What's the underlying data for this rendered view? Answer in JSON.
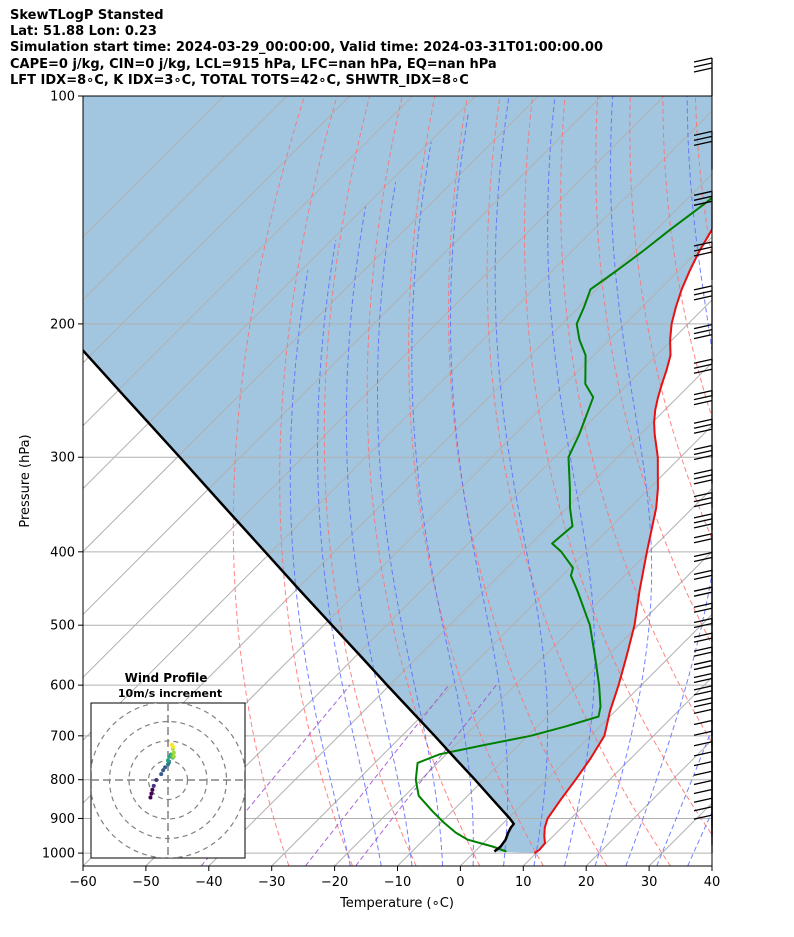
{
  "header": {
    "line1": "SkewTLogP Stansted",
    "line2": "Lat: 51.88   Lon: 0.23",
    "line3": "Simulation start time: 2024-03-29_00:00:00, Valid time: 2024-03-31T01:00:00.00",
    "line4": "CAPE=0 j/kg, CIN=0 j/kg, LCL=915 hPa, LFC=nan hPa, EQ=nan hPa",
    "line5": "LFT IDX=8∘C, K IDX=3∘C, TOTAL TOTS=42∘C, SHWTR_IDX=8∘C"
  },
  "chart_data": [
    {
      "type": "line",
      "subtype": "skew-T log-p diagram",
      "xlabel": "Temperature (∘C)",
      "ylabel": "Pressure (hPa)",
      "xlim": [
        -60,
        40
      ],
      "ylim": [
        1040,
        100
      ],
      "y_scale": "log",
      "x_ticks": [
        -60,
        -50,
        -40,
        -30,
        -20,
        -10,
        0,
        10,
        20,
        30,
        40
      ],
      "y_ticks": [
        1000,
        900,
        800,
        700,
        600,
        500,
        400,
        300,
        200,
        100
      ],
      "grid": true,
      "colors": {
        "temperature": "#e81010",
        "dewpoint": "#008000",
        "parcel": "#000000",
        "shading": "#a3c6e0",
        "dry_adiabats": "#ff6f6f",
        "moist_adiabats": "#5c6bff",
        "mixing_ratio": "#9a4bd0",
        "isotherms": "#b0b0b0"
      },
      "series": [
        {
          "name": "temperature",
          "points": [
            [
              1000,
              9.7
            ],
            [
              990,
              10
            ],
            [
              970,
              9.8
            ],
            [
              950,
              8.6
            ],
            [
              925,
              7.3
            ],
            [
              900,
              6.3
            ],
            [
              850,
              5.4
            ],
            [
              800,
              4.6
            ],
            [
              750,
              3.6
            ],
            [
              700,
              2.2
            ],
            [
              650,
              -0.8
            ],
            [
              600,
              -3.6
            ],
            [
              550,
              -6.9
            ],
            [
              500,
              -10.6
            ],
            [
              450,
              -15.3
            ],
            [
              400,
              -20.3
            ],
            [
              350,
              -25.8
            ],
            [
              330,
              -28.6
            ],
            [
              300,
              -33.6
            ],
            [
              280,
              -37.7
            ],
            [
              270,
              -39.7
            ],
            [
              260,
              -41.5
            ],
            [
              250,
              -43.1
            ],
            [
              240,
              -44.6
            ],
            [
              230,
              -46.1
            ],
            [
              220,
              -47.8
            ],
            [
              210,
              -50.3
            ],
            [
              200,
              -52.6
            ],
            [
              190,
              -54.6
            ],
            [
              180,
              -56.5
            ],
            [
              170,
              -58.2
            ],
            [
              160,
              -59.8
            ],
            [
              150,
              -61.2
            ],
            [
              140,
              -62.7
            ],
            [
              130,
              -64.2
            ],
            [
              120,
              -65.9
            ],
            [
              110,
              -67.7
            ],
            [
              100,
              -69.5
            ]
          ]
        },
        {
          "name": "dewpoint",
          "points": [
            [
              995,
              5
            ],
            [
              980,
              2
            ],
            [
              970,
              -0.5
            ],
            [
              960,
              -3
            ],
            [
              940,
              -6
            ],
            [
              910,
              -9.7
            ],
            [
              880,
              -13.2
            ],
            [
              840,
              -17.8
            ],
            [
              800,
              -20.8
            ],
            [
              760,
              -23.2
            ],
            [
              740,
              -21
            ],
            [
              720,
              -15.5
            ],
            [
              700,
              -9.5
            ],
            [
              680,
              -5.4
            ],
            [
              660,
              -1.8
            ],
            [
              640,
              -3.1
            ],
            [
              600,
              -6.7
            ],
            [
              550,
              -11.9
            ],
            [
              500,
              -17.7
            ],
            [
              450,
              -25.2
            ],
            [
              430,
              -28.6
            ],
            [
              420,
              -29.5
            ],
            [
              400,
              -33.9
            ],
            [
              390,
              -36.7
            ],
            [
              370,
              -36.2
            ],
            [
              350,
              -39.5
            ],
            [
              330,
              -42.6
            ],
            [
              300,
              -47.8
            ],
            [
              280,
              -49.7
            ],
            [
              250,
              -53.4
            ],
            [
              240,
              -56.8
            ],
            [
              220,
              -61.3
            ],
            [
              210,
              -64.7
            ],
            [
              200,
              -67.7
            ],
            [
              190,
              -69.2
            ],
            [
              180,
              -71
            ],
            [
              170,
              -69.8
            ],
            [
              160,
              -68.7
            ],
            [
              150,
              -67.8
            ],
            [
              140,
              -66.6
            ],
            [
              130,
              -65.5
            ],
            [
              120,
              -64.2
            ],
            [
              110,
              -63.2
            ],
            [
              100,
              -62
            ]
          ]
        },
        {
          "name": "parcel",
          "points": [
            [
              995,
              3.1
            ],
            [
              980,
              3.3
            ],
            [
              960,
              3
            ],
            [
              940,
              2.3
            ],
            [
              925,
              1.9
            ],
            [
              915,
              1.8
            ],
            [
              900,
              0.3
            ],
            [
              850,
              -5.4
            ],
            [
              800,
              -11.4
            ],
            [
              750,
              -17.9
            ],
            [
              700,
              -24.8
            ],
            [
              650,
              -32.3
            ],
            [
              600,
              -40.4
            ],
            [
              550,
              -49.1
            ],
            [
              500,
              -58.7
            ],
            [
              450,
              -69.3
            ],
            [
              400,
              -81
            ],
            [
              350,
              -94.3
            ],
            [
              300,
              -109.6
            ],
            [
              250,
              -127.8
            ],
            [
              200,
              -150
            ],
            [
              150,
              -178.7
            ],
            [
              100,
              -219
            ]
          ]
        }
      ],
      "wind_barbs": "plotted at right margin, one barb per pressure level",
      "isopleths": [
        "isotherms",
        "dry adiabats",
        "moist adiabats",
        "mixing ratio lines"
      ]
    },
    {
      "type": "scatter",
      "subtype": "hodograph",
      "title": "Wind Profile",
      "subtitle": "10m/s increment",
      "rings_mps": [
        10,
        20,
        30,
        40
      ],
      "axes": "u/v crosshair at origin",
      "points_uv": [
        [
          -9,
          -9
        ],
        [
          -8.5,
          -7
        ],
        [
          -8,
          -5
        ],
        [
          -7.3,
          -3
        ],
        [
          -6,
          0
        ],
        [
          -3.5,
          3
        ],
        [
          -2.5,
          5
        ],
        [
          -1.5,
          6.5
        ],
        [
          0,
          8
        ],
        [
          0.5,
          9
        ],
        [
          0,
          10
        ],
        [
          1,
          12
        ],
        [
          1.5,
          13
        ],
        [
          2,
          12.5
        ],
        [
          2.5,
          11.5
        ],
        [
          3,
          12
        ],
        [
          3,
          14
        ],
        [
          2.5,
          16
        ],
        [
          2.5,
          17
        ],
        [
          2,
          18
        ]
      ],
      "colormap": "viridis (low levels purple, upper levels yellow/green)"
    }
  ]
}
